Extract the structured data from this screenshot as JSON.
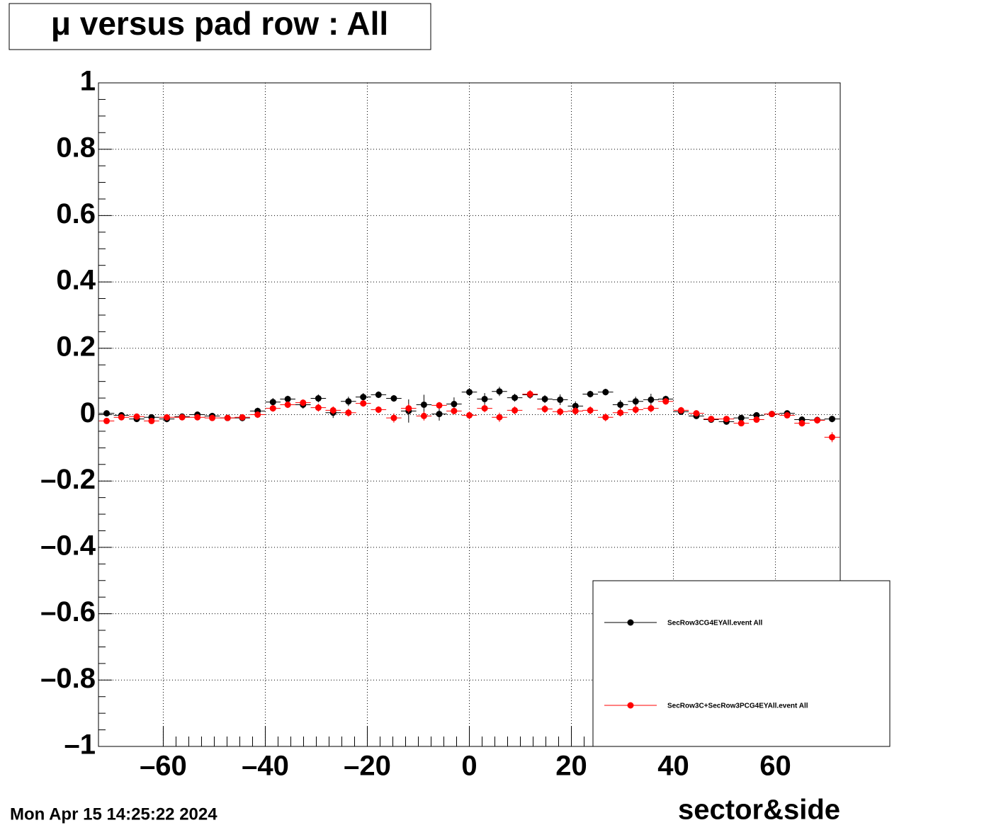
{
  "chart_data": {
    "type": "scatter",
    "title": "μ versus pad row : All",
    "x_label": "sector&side",
    "footer": "Mon Apr 15 14:25:22 2024",
    "x": [
      -71.1,
      -68.2,
      -65.2,
      -62.3,
      -59.3,
      -56.3,
      -53.3,
      -50.4,
      -47.4,
      -44.5,
      -41.5,
      -38.5,
      -35.6,
      -32.6,
      -29.6,
      -26.7,
      -23.7,
      -20.8,
      -17.8,
      -14.8,
      -11.9,
      -8.9,
      -5.9,
      -3.0,
      0,
      3.0,
      5.9,
      8.9,
      11.9,
      14.8,
      17.8,
      20.8,
      23.7,
      26.7,
      29.6,
      32.6,
      35.6,
      38.5,
      41.5,
      44.5,
      47.4,
      50.4,
      53.3,
      56.3,
      59.3,
      62.3,
      65.2,
      68.2,
      71.1
    ],
    "xerr": 1.5,
    "series": [
      {
        "name": "SecRow3CG4EYAll.event All",
        "color": "#000000",
        "values": [
          0.004,
          -0.002,
          -0.013,
          -0.008,
          -0.013,
          -0.006,
          0,
          -0.004,
          -0.01,
          -0.01,
          0.011,
          0.038,
          0.047,
          0.03,
          0.049,
          0.006,
          0.04,
          0.053,
          0.06,
          0.049,
          0.011,
          0.03,
          0.002,
          0.032,
          0.068,
          0.047,
          0.07,
          0.051,
          0.06,
          0.047,
          0.045,
          0.026,
          0.062,
          0.068,
          0.03,
          0.04,
          0.045,
          0.047,
          0.009,
          -0.004,
          -0.015,
          -0.021,
          -0.01,
          -0.002,
          0.002,
          0.004,
          -0.015,
          -0.016,
          -0.013
        ],
        "errors": [
          0.008,
          0.008,
          0.008,
          0.008,
          0.01,
          0.008,
          0.008,
          0.008,
          0.008,
          0.01,
          0.01,
          0.012,
          0.01,
          0.012,
          0.012,
          0.016,
          0.014,
          0.012,
          0.01,
          0.01,
          0.035,
          0.03,
          0.02,
          0.02,
          0.012,
          0.018,
          0.014,
          0.012,
          0.012,
          0.012,
          0.016,
          0.014,
          0.01,
          0.01,
          0.014,
          0.014,
          0.018,
          0.01,
          0.01,
          0.008,
          0.008,
          0.008,
          0.008,
          0.008,
          0.008,
          0.008,
          0.01,
          0.01,
          0.01
        ]
      },
      {
        "name": "SecRow3C+SecRow3PCG4EYAll.event All",
        "color": "#ff0000",
        "values": [
          -0.019,
          -0.008,
          -0.006,
          -0.019,
          -0.008,
          -0.008,
          -0.008,
          -0.01,
          -0.01,
          -0.008,
          0,
          0.019,
          0.03,
          0.036,
          0.021,
          0.013,
          0.006,
          0.034,
          0.015,
          -0.01,
          0.019,
          -0.004,
          0.028,
          0.011,
          -0.002,
          0.019,
          -0.008,
          0.013,
          0.062,
          0.017,
          0.009,
          0.011,
          0.013,
          -0.008,
          0.006,
          0.015,
          0.019,
          0.04,
          0.013,
          0.004,
          -0.013,
          -0.013,
          -0.026,
          -0.015,
          0.002,
          -0.002,
          -0.026,
          -0.017,
          -0.068
        ],
        "errors": [
          0.008,
          0.008,
          0.008,
          0.008,
          0.008,
          0.008,
          0.008,
          0.008,
          0.008,
          0.008,
          0.01,
          0.01,
          0.01,
          0.01,
          0.012,
          0.012,
          0.012,
          0.01,
          0.01,
          0.014,
          0.014,
          0.014,
          0.01,
          0.01,
          0.012,
          0.012,
          0.014,
          0.012,
          0.012,
          0.012,
          0.012,
          0.012,
          0.012,
          0.012,
          0.012,
          0.012,
          0.012,
          0.01,
          0.01,
          0.008,
          0.008,
          0.008,
          0.008,
          0.008,
          0.008,
          0.008,
          0.01,
          0.01,
          0.015
        ]
      }
    ],
    "xlim": [
      -72.7,
      72.7
    ],
    "ylim": [
      -1,
      1
    ],
    "xticks": [
      {
        "value": -60,
        "label": "–60"
      },
      {
        "value": -40,
        "label": "–40"
      },
      {
        "value": -20,
        "label": "–20"
      },
      0,
      20,
      40,
      60
    ],
    "yticks": [
      {
        "value": -1,
        "label": "–1"
      },
      {
        "value": -0.8,
        "label": "–0.8"
      },
      {
        "value": -0.6,
        "label": "–0.6"
      },
      {
        "value": -0.4,
        "label": "–0.4"
      },
      {
        "value": -0.2,
        "label": "–0.2"
      },
      0,
      0.2,
      0.4,
      0.6,
      0.8,
      1
    ],
    "grid": true,
    "legend": "bottom-right"
  }
}
